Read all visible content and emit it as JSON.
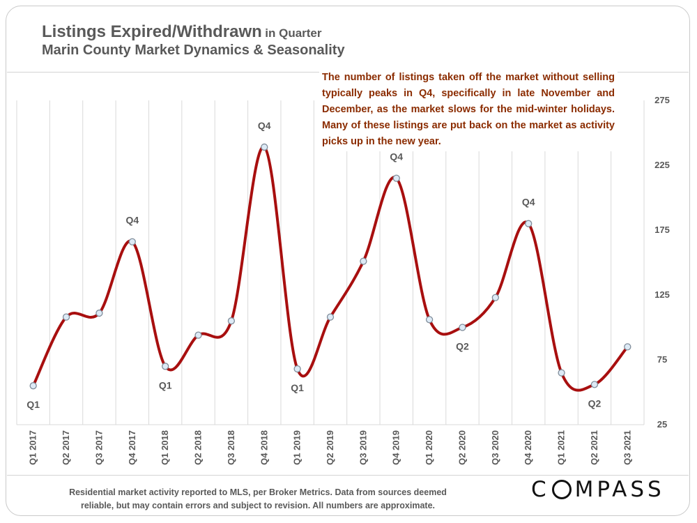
{
  "title": {
    "main": "Listings Expired/Withdrawn",
    "suffix": "in Quarter"
  },
  "subtitle": "Marin County Market Dynamics & Seasonality",
  "annotation": "The number of listings taken off the market without selling typically peaks in Q4, specifically in late November and December, as the market slows for the mid-winter holidays. Many of these listings are put back on the market as activity picks up in the new year.",
  "footnote": {
    "line1": "Residential market activity reported to MLS, per Broker Metrics. Data from sources deemed",
    "line2": "reliable, but may contain errors and subject to revision. All numbers are approximate."
  },
  "logo": {
    "before": "C",
    "after": "MPASS"
  },
  "colors": {
    "line": "#a80f0f",
    "marker_fill": "#ddeaf6",
    "marker_stroke": "#7f8c99",
    "text": "#595959",
    "annotation": "#8b2c00"
  },
  "chart_data": {
    "type": "line",
    "title": "Listings Expired/Withdrawn in Quarter",
    "subtitle": "Marin County Market Dynamics & Seasonality",
    "xlabel": "",
    "ylabel": "",
    "categories": [
      "Q1 2017",
      "Q2 2017",
      "Q3 2017",
      "Q4 2017",
      "Q1 2018",
      "Q2 2018",
      "Q3 2018",
      "Q4 2018",
      "Q1 2019",
      "Q2 2019",
      "Q3 2019",
      "Q4 2019",
      "Q1 2020",
      "Q2 2020",
      "Q3 2020",
      "Q4 2020",
      "Q1 2021",
      "Q2 2021",
      "Q3 2021"
    ],
    "series": [
      {
        "name": "Listings Expired/Withdrawn",
        "values": [
          55,
          108,
          111,
          166,
          70,
          94,
          105,
          239,
          68,
          108,
          151,
          215,
          106,
          100,
          123,
          180,
          65,
          56,
          85
        ]
      }
    ],
    "ylim": [
      25,
      275
    ],
    "yticks": [
      25,
      75,
      125,
      175,
      225,
      275
    ],
    "y_axis_side": "right",
    "grid": "vertical",
    "point_labels": [
      {
        "index": 0,
        "text": "Q1",
        "position": "below"
      },
      {
        "index": 3,
        "text": "Q4",
        "position": "above"
      },
      {
        "index": 4,
        "text": "Q1",
        "position": "below"
      },
      {
        "index": 7,
        "text": "Q4",
        "position": "above"
      },
      {
        "index": 8,
        "text": "Q1",
        "position": "below"
      },
      {
        "index": 11,
        "text": "Q4",
        "position": "above"
      },
      {
        "index": 13,
        "text": "Q2",
        "position": "below"
      },
      {
        "index": 15,
        "text": "Q4",
        "position": "above"
      },
      {
        "index": 17,
        "text": "Q2",
        "position": "below"
      }
    ]
  }
}
